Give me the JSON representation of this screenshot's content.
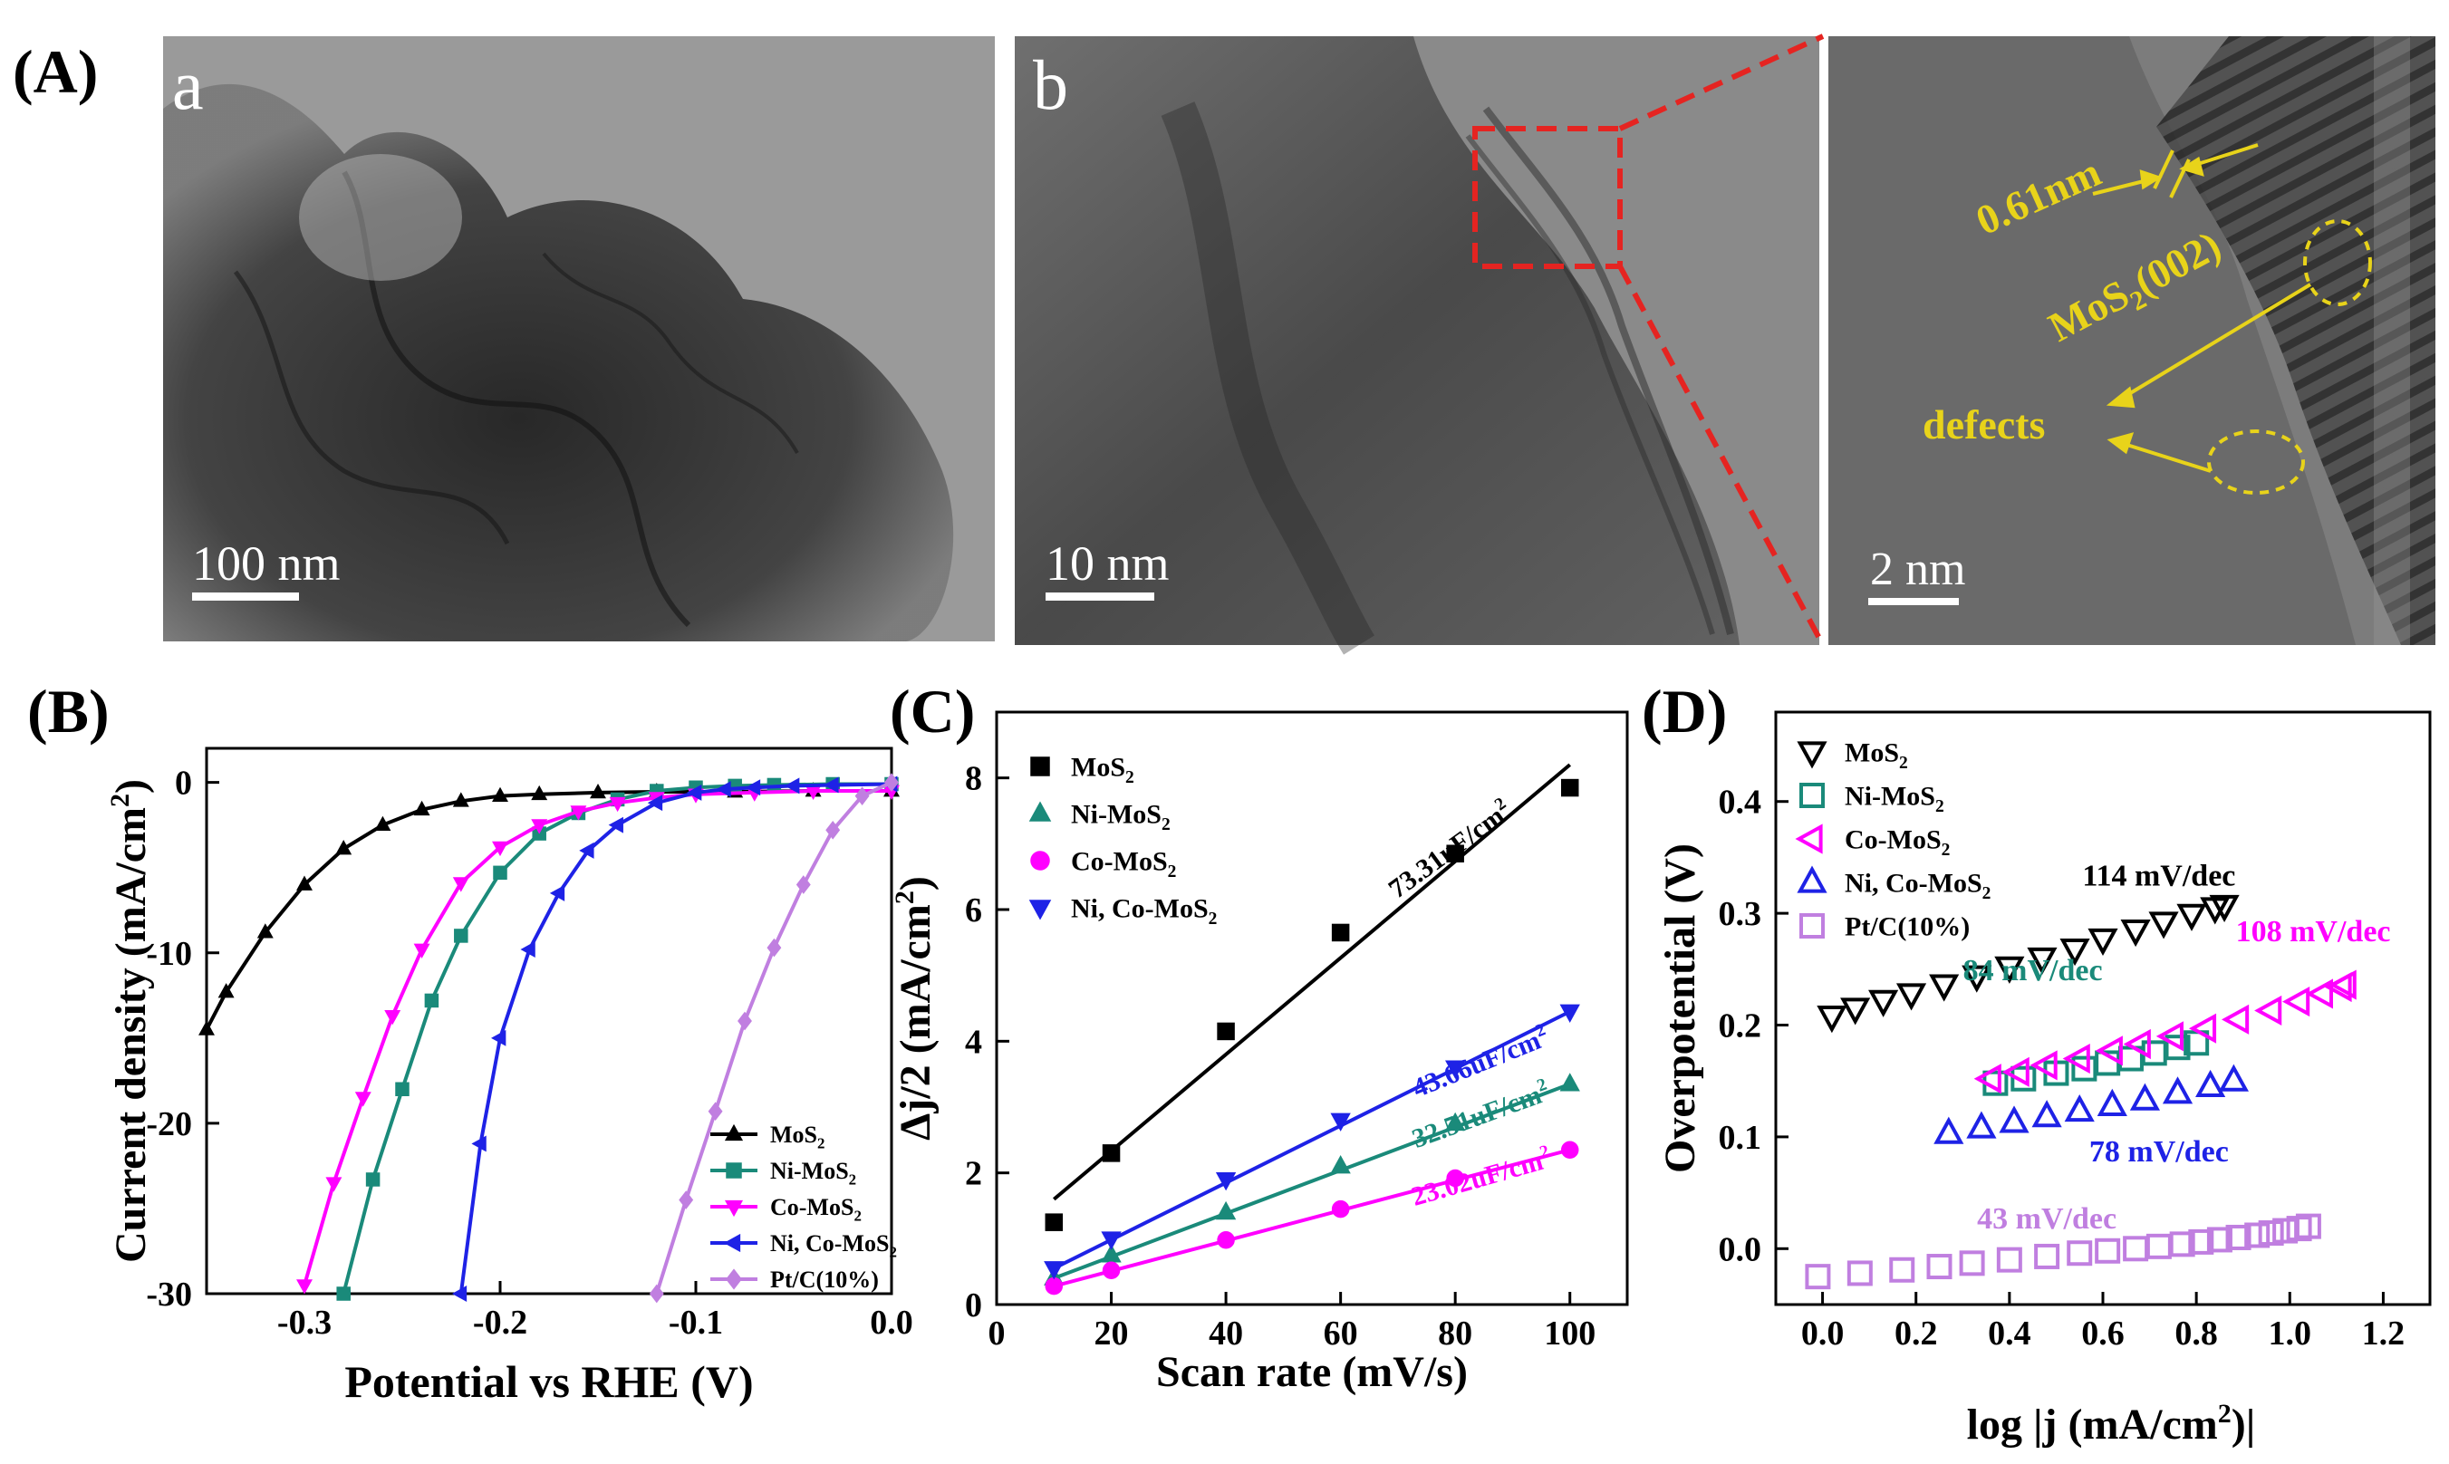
{
  "figure": {
    "panel_labels": {
      "A": "(A)",
      "B": "(B)",
      "C": "(C)",
      "D": "(D)"
    },
    "tem": {
      "a_label": "a",
      "b_label": "b",
      "scale_a": "100 nm",
      "scale_b": "10 nm",
      "scale_c": "2 nm",
      "spacing": "0.61nm",
      "plane_pre": "MoS",
      "plane_sub": "2",
      "plane_post": "(002)",
      "defects": "defects",
      "colors": {
        "annotation": "#e8d31a",
        "zoom_box": "#e52421"
      }
    }
  },
  "chart_data": [
    {
      "id": "B",
      "type": "line",
      "title": "",
      "xlabel": "Potential vs RHE (V)",
      "ylabel_pre": "Current density (mA/cm",
      "ylabel_sup": "2",
      "ylabel_post": ")",
      "xlim": [
        -0.35,
        0.0
      ],
      "ylim": [
        -30,
        2
      ],
      "xticks": [
        -0.3,
        -0.2,
        -0.1,
        0.0
      ],
      "xtick_labels": [
        "-0.3",
        "-0.2",
        "-0.1",
        "0.0"
      ],
      "yticks": [
        0,
        -10,
        -20,
        -30
      ],
      "ytick_labels": [
        "0",
        "-10",
        "-20",
        "-30"
      ],
      "legend_position": "bottom-right",
      "series": [
        {
          "name": "MoS",
          "sub": "2",
          "suffix": "",
          "color": "#000000",
          "marker": "triangle-up",
          "x": [
            -0.35,
            -0.34,
            -0.32,
            -0.3,
            -0.28,
            -0.26,
            -0.24,
            -0.22,
            -0.2,
            -0.18,
            -0.15,
            -0.12,
            -0.08,
            -0.04,
            0.0
          ],
          "y": [
            -14.5,
            -12.3,
            -8.8,
            -6.0,
            -3.9,
            -2.5,
            -1.6,
            -1.1,
            -0.8,
            -0.7,
            -0.6,
            -0.55,
            -0.55,
            -0.5,
            -0.5
          ]
        },
        {
          "name": "Ni-MoS",
          "sub": "2",
          "suffix": "",
          "color": "#1a8a7a",
          "marker": "square",
          "x": [
            -0.28,
            -0.265,
            -0.25,
            -0.235,
            -0.22,
            -0.2,
            -0.18,
            -0.16,
            -0.14,
            -0.12,
            -0.1,
            -0.08,
            -0.06,
            -0.03,
            0.0
          ],
          "y": [
            -30,
            -23.3,
            -18.0,
            -12.8,
            -9.0,
            -5.3,
            -3.0,
            -1.8,
            -1.0,
            -0.5,
            -0.3,
            -0.2,
            -0.15,
            -0.1,
            -0.1
          ]
        },
        {
          "name": "Co-MoS",
          "sub": "2",
          "suffix": "",
          "color": "#ff00ff",
          "marker": "triangle-down",
          "x": [
            -0.3,
            -0.285,
            -0.27,
            -0.255,
            -0.24,
            -0.22,
            -0.2,
            -0.18,
            -0.16,
            -0.14,
            -0.12,
            -0.1,
            -0.07,
            -0.04,
            0.0
          ],
          "y": [
            -29.5,
            -23.5,
            -18.5,
            -13.7,
            -9.8,
            -5.9,
            -3.8,
            -2.5,
            -1.7,
            -1.2,
            -0.9,
            -0.7,
            -0.6,
            -0.5,
            -0.5
          ]
        },
        {
          "name": "Ni, Co-MoS",
          "sub": "2",
          "suffix": "",
          "color": "#1e22e6",
          "marker": "triangle-left",
          "x": [
            -0.22,
            -0.21,
            -0.2,
            -0.185,
            -0.17,
            -0.155,
            -0.14,
            -0.12,
            -0.1,
            -0.085,
            -0.07,
            -0.05,
            -0.03,
            0.0
          ],
          "y": [
            -30,
            -21.2,
            -15.0,
            -9.8,
            -6.5,
            -4.0,
            -2.5,
            -1.2,
            -0.6,
            -0.4,
            -0.3,
            -0.2,
            -0.15,
            -0.1
          ]
        },
        {
          "name": "Pt/C(10%)",
          "sub": "",
          "suffix": "",
          "color": "#c07fe0",
          "marker": "diamond",
          "x": [
            -0.12,
            -0.105,
            -0.09,
            -0.075,
            -0.06,
            -0.045,
            -0.03,
            -0.015,
            0.0
          ],
          "y": [
            -30,
            -24.5,
            -19.3,
            -14.0,
            -9.7,
            -6.0,
            -2.8,
            -0.8,
            0.0
          ]
        }
      ]
    },
    {
      "id": "C",
      "type": "scatter",
      "title": "",
      "xlabel": "Scan rate (mV/s)",
      "ylabel_pre": "Δj/2 (mA/cm",
      "ylabel_sup": "2",
      "ylabel_post": ")",
      "xlim": [
        0,
        110
      ],
      "ylim": [
        0,
        9
      ],
      "xticks": [
        0,
        20,
        40,
        60,
        80,
        100
      ],
      "xtick_labels": [
        "0",
        "20",
        "40",
        "60",
        "80",
        "100"
      ],
      "yticks": [
        0,
        2,
        4,
        6,
        8
      ],
      "ytick_labels": [
        "0",
        "2",
        "4",
        "6",
        "8"
      ],
      "legend_position": "top-left",
      "series": [
        {
          "name": "MoS",
          "sub": "2",
          "suffix": "",
          "color": "#000000",
          "marker": "square",
          "x": [
            10,
            20,
            40,
            60,
            80,
            100
          ],
          "y": [
            1.25,
            2.3,
            4.15,
            5.65,
            6.85,
            7.85
          ],
          "fit": [
            [
              10,
              1.6
            ],
            [
              100,
              8.2
            ]
          ],
          "annotation": "73.31uF/cm",
          "annotation_sup": "2",
          "annotation_at": [
            80,
            6.8
          ]
        },
        {
          "name": "Ni-MoS",
          "sub": "2",
          "suffix": "",
          "color": "#1a8a7a",
          "marker": "triangle-up",
          "x": [
            10,
            20,
            40,
            60,
            80,
            100
          ],
          "y": [
            0.4,
            0.75,
            1.4,
            2.1,
            2.75,
            3.35
          ],
          "fit": [
            [
              10,
              0.4
            ],
            [
              100,
              3.35
            ]
          ],
          "annotation": "32.51uF/cm",
          "annotation_sup": "2",
          "annotation_at": [
            85,
            2.75
          ]
        },
        {
          "name": "Co-MoS",
          "sub": "2",
          "suffix": "",
          "color": "#ff00ff",
          "marker": "circle",
          "x": [
            10,
            20,
            40,
            60,
            80,
            100
          ],
          "y": [
            0.28,
            0.52,
            0.98,
            1.45,
            1.92,
            2.35
          ],
          "fit": [
            [
              10,
              0.28
            ],
            [
              100,
              2.35
            ]
          ],
          "annotation": "23.02uF/cm",
          "annotation_sup": "2",
          "annotation_at": [
            85,
            1.8
          ]
        },
        {
          "name": "Ni, Co-MoS",
          "sub": "2",
          "suffix": "",
          "color": "#1e22e6",
          "marker": "triangle-down",
          "x": [
            10,
            20,
            40,
            60,
            80,
            100
          ],
          "y": [
            0.55,
            1.0,
            1.9,
            2.8,
            3.6,
            4.45
          ],
          "fit": [
            [
              10,
              0.55
            ],
            [
              100,
              4.45
            ]
          ],
          "annotation": "43.66uF/cm",
          "annotation_sup": "2",
          "annotation_at": [
            85,
            3.55
          ]
        }
      ]
    },
    {
      "id": "D",
      "type": "scatter",
      "title": "",
      "xlabel_pre": "log |j (mA/cm",
      "xlabel_sup": "2",
      "xlabel_post": ")|",
      "ylabel": "Overpotential (V)",
      "xlim": [
        -0.1,
        1.3
      ],
      "ylim": [
        -0.05,
        0.48
      ],
      "xticks": [
        0.0,
        0.2,
        0.4,
        0.6,
        0.8,
        1.0,
        1.2
      ],
      "xtick_labels": [
        "0.0",
        "0.2",
        "0.4",
        "0.6",
        "0.8",
        "1.0",
        "1.2"
      ],
      "yticks": [
        0.0,
        0.1,
        0.2,
        0.3,
        0.4
      ],
      "ytick_labels": [
        "0.0",
        "0.1",
        "0.2",
        "0.3",
        "0.4"
      ],
      "legend_position": "top-left",
      "series": [
        {
          "name": "MoS",
          "sub": "2",
          "suffix": "",
          "color": "#000000",
          "marker": "open-triangle-down",
          "x": [
            0.02,
            0.07,
            0.13,
            0.19,
            0.26,
            0.33,
            0.4,
            0.47,
            0.54,
            0.6,
            0.67,
            0.73,
            0.79,
            0.84,
            0.86
          ],
          "y": [
            0.208,
            0.215,
            0.222,
            0.228,
            0.236,
            0.244,
            0.252,
            0.26,
            0.268,
            0.277,
            0.285,
            0.292,
            0.299,
            0.305,
            0.307
          ],
          "annotation": "114 mV/dec",
          "annotation_at": [
            0.72,
            0.325
          ]
        },
        {
          "name": "Ni-MoS",
          "sub": "2",
          "suffix": "",
          "color": "#1a8a7a",
          "marker": "open-square",
          "x": [
            0.37,
            0.43,
            0.5,
            0.56,
            0.61,
            0.66,
            0.71,
            0.76,
            0.8
          ],
          "y": [
            0.148,
            0.152,
            0.157,
            0.161,
            0.166,
            0.17,
            0.175,
            0.18,
            0.184
          ],
          "annotation": "84 mV/dec",
          "annotation_at": [
            0.45,
            0.24
          ]
        },
        {
          "name": "Co-MoS",
          "sub": "2",
          "suffix": "",
          "color": "#ff00ff",
          "marker": "open-triangle-left",
          "x": [
            0.36,
            0.42,
            0.48,
            0.55,
            0.62,
            0.68,
            0.75,
            0.82,
            0.89,
            0.96,
            1.02,
            1.07,
            1.11,
            1.12
          ],
          "y": [
            0.152,
            0.158,
            0.164,
            0.17,
            0.177,
            0.183,
            0.19,
            0.197,
            0.205,
            0.213,
            0.221,
            0.228,
            0.234,
            0.236
          ],
          "annotation": "108 mV/dec",
          "annotation_at": [
            1.05,
            0.275
          ]
        },
        {
          "name": "Ni, Co-MoS",
          "sub": "2",
          "suffix": "",
          "color": "#1e22e6",
          "marker": "open-triangle-up",
          "x": [
            0.27,
            0.34,
            0.41,
            0.48,
            0.55,
            0.62,
            0.69,
            0.76,
            0.83,
            0.88
          ],
          "y": [
            0.103,
            0.108,
            0.113,
            0.118,
            0.123,
            0.128,
            0.133,
            0.139,
            0.145,
            0.15
          ],
          "annotation": "78 mV/dec",
          "annotation_at": [
            0.72,
            0.078
          ]
        },
        {
          "name": "Pt/C(10%)",
          "sub": "",
          "suffix": "",
          "color": "#c07fe0",
          "marker": "open-square",
          "x": [
            -0.01,
            0.08,
            0.17,
            0.25,
            0.32,
            0.4,
            0.48,
            0.55,
            0.61,
            0.67,
            0.72,
            0.77,
            0.81,
            0.85,
            0.89,
            0.93,
            0.96,
            0.99,
            1.02,
            1.04
          ],
          "y": [
            -0.025,
            -0.022,
            -0.019,
            -0.016,
            -0.013,
            -0.01,
            -0.007,
            -0.004,
            -0.002,
            0.0,
            0.002,
            0.004,
            0.006,
            0.008,
            0.01,
            0.012,
            0.014,
            0.016,
            0.018,
            0.02
          ],
          "annotation": "43 mV/dec",
          "annotation_at": [
            0.48,
            0.018
          ]
        }
      ]
    }
  ]
}
